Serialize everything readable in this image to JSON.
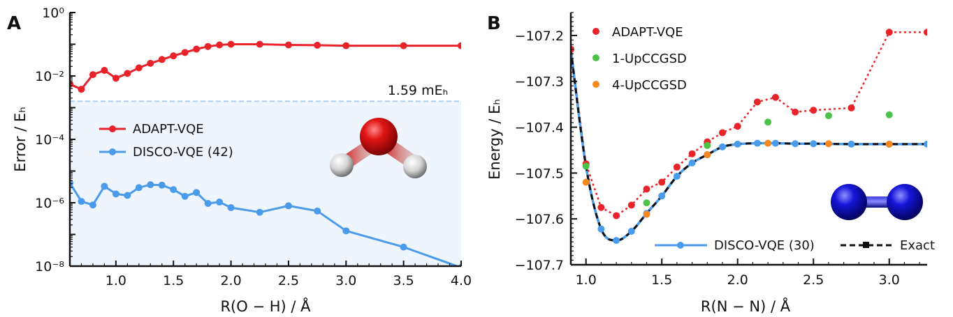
{
  "chart_data": [
    {
      "panel": "A",
      "type": "line",
      "yscale": "log",
      "xlabel": "R(O − H) / Å",
      "ylabel": "Error / Eₕ",
      "xlim": [
        0.6,
        4.0
      ],
      "ylim": [
        1e-08,
        1
      ],
      "xticks": [
        "1.0",
        "1.5",
        "2.0",
        "2.5",
        "3.0",
        "3.5",
        "4.0"
      ],
      "yticks": [
        "10⁻⁸",
        "10⁻⁶",
        "10⁻⁴",
        "10⁻²",
        "10⁰"
      ],
      "threshold": {
        "value": 0.00159,
        "label": "1.59 mEₕ"
      },
      "legend": "center-left",
      "series": [
        {
          "name": "ADAPT-VQE",
          "color": "#e8232a",
          "x": [
            0.6,
            0.7,
            0.8,
            0.9,
            1.0,
            1.1,
            1.2,
            1.3,
            1.4,
            1.5,
            1.6,
            1.7,
            1.8,
            1.9,
            2.0,
            2.25,
            2.5,
            2.75,
            3.0,
            3.5,
            4.0
          ],
          "y": [
            0.0055,
            0.0038,
            0.011,
            0.015,
            0.0085,
            0.012,
            0.018,
            0.025,
            0.033,
            0.043,
            0.055,
            0.07,
            0.085,
            0.095,
            0.1,
            0.1,
            0.095,
            0.093,
            0.09,
            0.09,
            0.09
          ]
        },
        {
          "name": "DISCO-VQE (42)",
          "color": "#4a9bea",
          "x": [
            0.6,
            0.7,
            0.8,
            0.9,
            1.0,
            1.1,
            1.2,
            1.3,
            1.4,
            1.5,
            1.6,
            1.7,
            1.8,
            1.9,
            2.0,
            2.25,
            2.5,
            2.75,
            3.0,
            3.5,
            4.0
          ],
          "y": [
            4.2e-06,
            1.1e-06,
            8.5e-07,
            3.3e-06,
            1.9e-06,
            1.7e-06,
            3e-06,
            3.7e-06,
            3.6e-06,
            2.6e-06,
            1.6e-06,
            2.1e-06,
            9.5e-07,
            1.05e-06,
            7e-07,
            5e-07,
            8e-07,
            5.5e-07,
            1.3e-07,
            4e-08,
            9e-09
          ]
        }
      ]
    },
    {
      "panel": "B",
      "type": "line",
      "xlabel": "R(N − N) / Å",
      "ylabel": "Energy / Eₕ",
      "xlim": [
        0.9,
        3.25
      ],
      "ylim": [
        -107.7,
        -107.15
      ],
      "xticks": [
        "1.0",
        "1.5",
        "2.0",
        "2.5",
        "3.0"
      ],
      "yticks": [
        "−107.2",
        "−107.3",
        "−107.4",
        "−107.5",
        "−107.6",
        "−107.7"
      ],
      "legend": "top-left and bottom-right",
      "series": [
        {
          "name": "ADAPT-VQE",
          "color": "#e8232a",
          "style": "dotted line with markers",
          "x": [
            0.9,
            1.0,
            1.1,
            1.2,
            1.3,
            1.4,
            1.5,
            1.6,
            1.7,
            1.8,
            1.9,
            2.0,
            2.13,
            2.25,
            2.38,
            2.5,
            2.75,
            3.0,
            3.25
          ],
          "y": [
            -107.23,
            -107.48,
            -107.575,
            -107.593,
            -107.57,
            -107.535,
            -107.52,
            -107.487,
            -107.458,
            -107.432,
            -107.412,
            -107.398,
            -107.345,
            -107.335,
            -107.367,
            -107.363,
            -107.358,
            -107.193,
            -107.193
          ]
        },
        {
          "name": "1-UpCCGSD",
          "color": "#4cc24a",
          "style": "markers",
          "x": [
            1.0,
            1.4,
            1.8,
            2.2,
            2.6,
            3.0
          ],
          "y": [
            -107.485,
            -107.565,
            -107.44,
            -107.389,
            -107.375,
            -107.373
          ]
        },
        {
          "name": "4-UpCCGSD",
          "color": "#f5881f",
          "style": "markers",
          "x": [
            1.0,
            1.4,
            1.8,
            2.2,
            2.6,
            3.0
          ],
          "y": [
            -107.52,
            -107.59,
            -107.46,
            -107.435,
            -107.436,
            -107.437
          ]
        },
        {
          "name": "DISCO-VQE (30)",
          "color": "#4a9bea",
          "style": "solid line with markers",
          "x": [
            0.9,
            1.0,
            1.1,
            1.2,
            1.3,
            1.4,
            1.5,
            1.6,
            1.7,
            1.8,
            1.9,
            2.0,
            2.13,
            2.25,
            2.38,
            2.5,
            2.75,
            3.0,
            3.25
          ],
          "y": [
            -107.23,
            -107.485,
            -107.622,
            -107.647,
            -107.627,
            -107.588,
            -107.55,
            -107.507,
            -107.478,
            -107.46,
            -107.443,
            -107.437,
            -107.435,
            -107.435,
            -107.436,
            -107.436,
            -107.437,
            -107.437,
            -107.437
          ]
        },
        {
          "name": "Exact",
          "color": "#111111",
          "style": "dashed line",
          "x": [
            0.9,
            1.0,
            1.1,
            1.2,
            1.3,
            1.4,
            1.5,
            1.6,
            1.7,
            1.8,
            1.9,
            2.0,
            2.13,
            2.25,
            2.38,
            2.5,
            2.75,
            3.0,
            3.25
          ],
          "y": [
            -107.23,
            -107.485,
            -107.622,
            -107.647,
            -107.627,
            -107.588,
            -107.55,
            -107.507,
            -107.478,
            -107.46,
            -107.443,
            -107.437,
            -107.435,
            -107.435,
            -107.436,
            -107.436,
            -107.437,
            -107.437,
            -107.437
          ]
        }
      ]
    }
  ]
}
